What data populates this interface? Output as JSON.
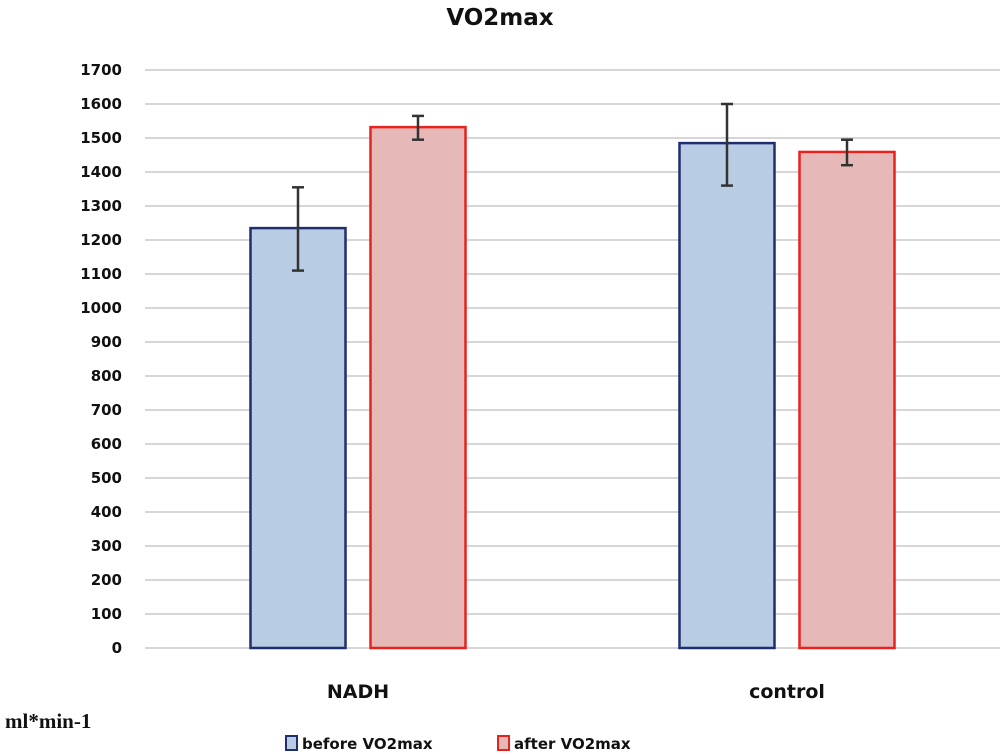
{
  "chart_data": {
    "type": "bar",
    "title": "VO2max",
    "xlabel": "",
    "ylabel": "ml*min-1",
    "ylim": [
      0,
      1700
    ],
    "yticks": [
      0,
      100,
      200,
      300,
      400,
      500,
      600,
      700,
      800,
      900,
      1000,
      1100,
      1200,
      1300,
      1400,
      1500,
      1600,
      1700
    ],
    "grid": true,
    "legend_position": "bottom",
    "categories": [
      "NADH",
      "control"
    ],
    "series": [
      {
        "name": "before VO2max",
        "values": [
          1235,
          1485
        ],
        "error_low": [
          1110,
          1360
        ],
        "error_high": [
          1355,
          1600
        ],
        "fill": "#b8cce4",
        "stroke": "#1f2e6e"
      },
      {
        "name": "after VO2max",
        "values": [
          1532,
          1459
        ],
        "error_low": [
          1495,
          1420
        ],
        "error_high": [
          1565,
          1495
        ],
        "fill": "#e6b8b7",
        "stroke": "#e8221c"
      }
    ]
  }
}
